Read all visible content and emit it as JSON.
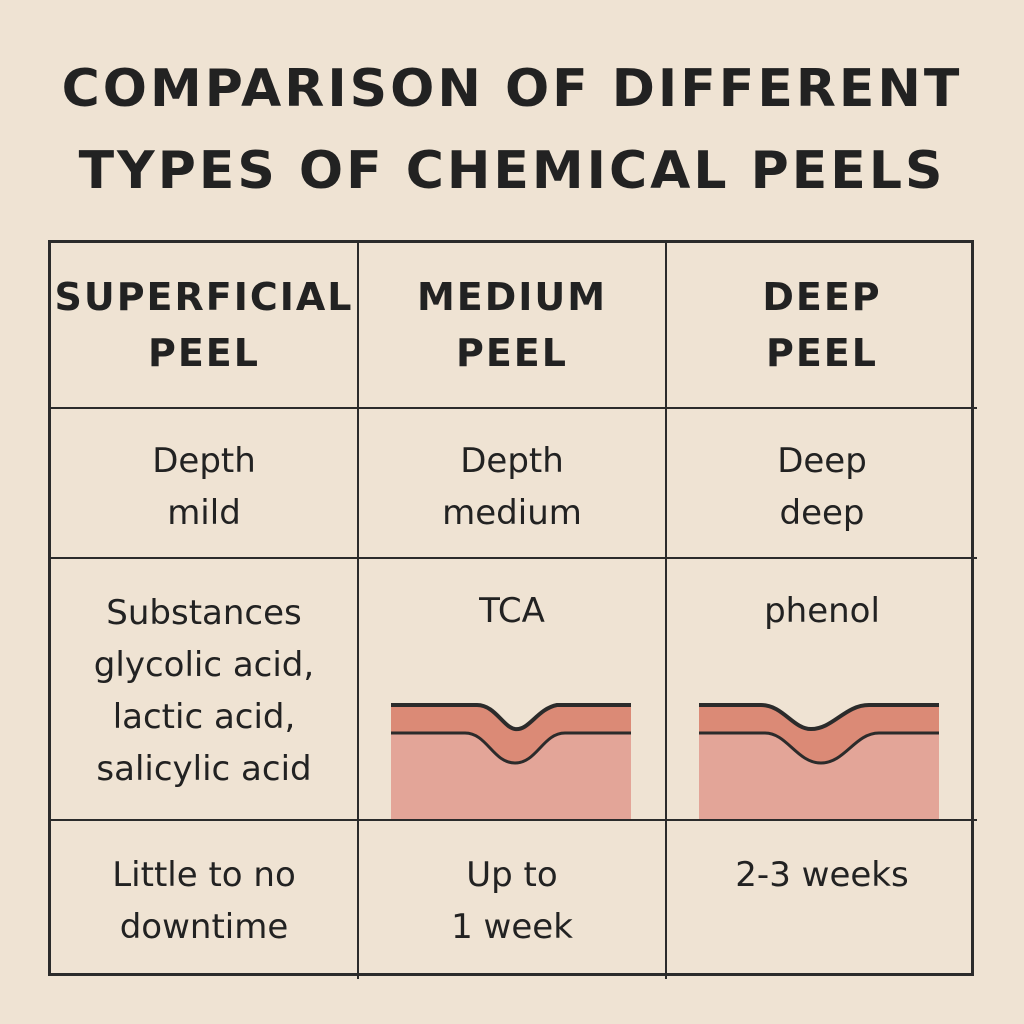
{
  "title": {
    "line1": "COMPARISON OF DIFFERENT",
    "line2": "TYPES OF CHEMICAL PEELS"
  },
  "columns": [
    {
      "header": [
        "SUPERFICIAL",
        "PEEL"
      ],
      "depth": [
        "Depth",
        "mild"
      ],
      "substances": [
        "Substances",
        "glycolic acid,",
        "lactic acid,",
        "salicylic acid"
      ],
      "downtime": [
        "Little to no",
        "downtime"
      ]
    },
    {
      "header": [
        "MEDIUM",
        "PEEL"
      ],
      "depth": [
        "Depth",
        "medium"
      ],
      "substances": [
        "TCA"
      ],
      "downtime": [
        "Up to",
        "1 week"
      ]
    },
    {
      "header": [
        "DEEP",
        "PEEL"
      ],
      "depth": [
        "Deep",
        "deep"
      ],
      "substances": [
        "phenol"
      ],
      "downtime": [
        "2-3 weeks"
      ]
    }
  ],
  "colors": {
    "background": "#efe3d3",
    "skin_top_layer": "#db8a76",
    "skin_lower_layer": "#e3a598",
    "line": "#2b2b2b"
  }
}
